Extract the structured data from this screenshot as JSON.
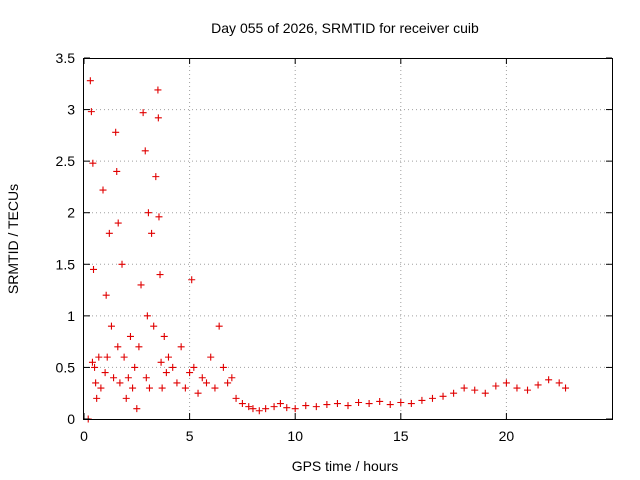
{
  "chart_data": {
    "type": "scatter",
    "title": "Day 055 of 2026, SRMTID for receiver cuib",
    "xlabel": "GPS time / hours",
    "ylabel": "SRMTID / TECUs",
    "xlim": [
      0,
      25
    ],
    "ylim": [
      0,
      3.5
    ],
    "xticks": [
      0,
      5,
      10,
      15,
      20
    ],
    "xtick_labels": [
      "0",
      "5",
      "10",
      "15",
      "20"
    ],
    "yticks": [
      0,
      0.5,
      1,
      1.5,
      2,
      2.5,
      3,
      3.5
    ],
    "ytick_labels": [
      "0",
      "0.5",
      "1",
      "1.5",
      "2",
      "2.5",
      "3",
      "3.5"
    ],
    "grid": true,
    "legend": "none",
    "marker": "plus",
    "colors": {
      "series": "#e00000",
      "grid": "#a0a0a0",
      "axis": "#000000"
    },
    "series": [
      {
        "name": "SRMTID",
        "x": [
          0.2,
          0.3,
          0.35,
          0.4,
          0.42,
          0.45,
          0.5,
          0.55,
          0.6,
          0.7,
          0.8,
          0.9,
          1.0,
          1.05,
          1.1,
          1.2,
          1.3,
          1.4,
          1.5,
          1.55,
          1.6,
          1.62,
          1.7,
          1.8,
          1.9,
          2.0,
          2.1,
          2.2,
          2.3,
          2.4,
          2.5,
          2.6,
          2.7,
          2.8,
          2.9,
          2.95,
          3.0,
          3.05,
          3.1,
          3.2,
          3.3,
          3.4,
          3.5,
          3.52,
          3.55,
          3.6,
          3.65,
          3.7,
          3.8,
          3.9,
          4.0,
          4.2,
          4.4,
          4.6,
          4.8,
          5.0,
          5.1,
          5.2,
          5.4,
          5.6,
          5.8,
          6.0,
          6.2,
          6.4,
          6.6,
          6.8,
          7.0,
          7.2,
          7.5,
          7.8,
          8.0,
          8.3,
          8.6,
          9.0,
          9.3,
          9.6,
          10.0,
          10.5,
          11.0,
          11.5,
          12.0,
          12.5,
          13.0,
          13.5,
          14.0,
          14.5,
          15.0,
          15.5,
          16.0,
          16.5,
          17.0,
          17.5,
          18.0,
          18.5,
          19.0,
          19.5,
          20.0,
          20.5,
          21.0,
          21.5,
          22.0,
          22.5,
          22.8
        ],
        "y": [
          0.0,
          3.28,
          2.98,
          0.55,
          2.48,
          1.45,
          0.5,
          0.35,
          0.2,
          0.6,
          0.3,
          2.22,
          0.45,
          1.2,
          0.6,
          1.8,
          0.9,
          0.4,
          2.78,
          2.4,
          0.7,
          1.9,
          0.35,
          1.5,
          0.6,
          0.2,
          0.4,
          0.8,
          0.3,
          0.5,
          0.1,
          0.7,
          1.3,
          2.97,
          2.6,
          0.4,
          1.0,
          2.0,
          0.3,
          1.8,
          0.9,
          2.35,
          3.19,
          2.92,
          1.96,
          1.4,
          0.55,
          0.3,
          0.8,
          0.45,
          0.6,
          0.5,
          0.35,
          0.7,
          0.3,
          0.45,
          1.35,
          0.5,
          0.25,
          0.4,
          0.35,
          0.6,
          0.3,
          0.9,
          0.5,
          0.35,
          0.4,
          0.2,
          0.15,
          0.12,
          0.1,
          0.08,
          0.1,
          0.12,
          0.15,
          0.11,
          0.1,
          0.13,
          0.12,
          0.14,
          0.15,
          0.13,
          0.16,
          0.15,
          0.17,
          0.14,
          0.16,
          0.15,
          0.18,
          0.2,
          0.22,
          0.25,
          0.3,
          0.28,
          0.25,
          0.32,
          0.35,
          0.3,
          0.28,
          0.33,
          0.38,
          0.35,
          0.3
        ]
      }
    ]
  }
}
